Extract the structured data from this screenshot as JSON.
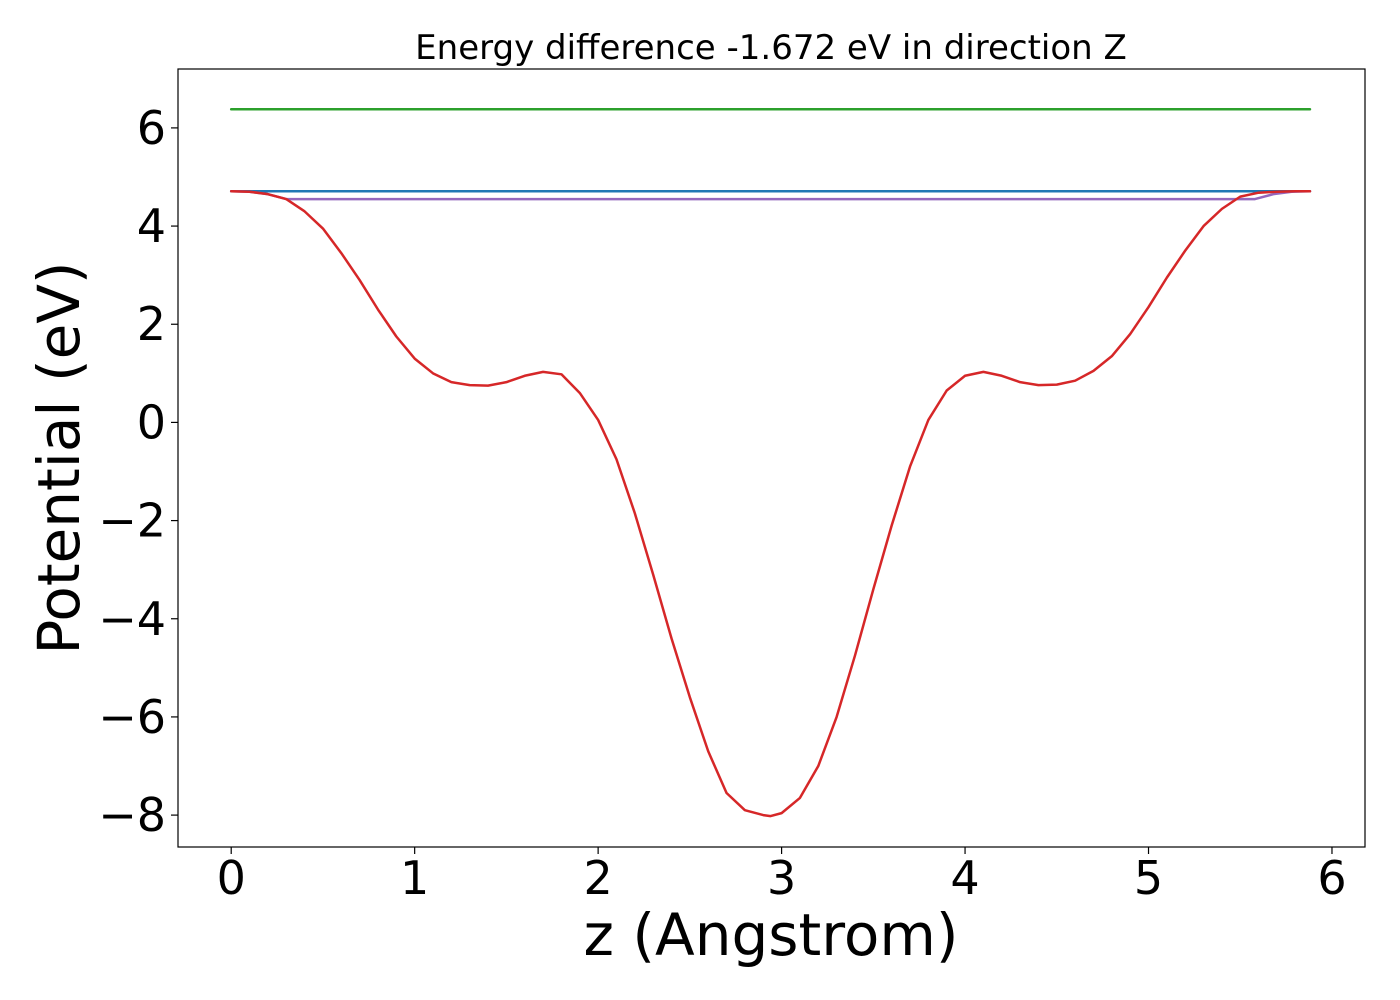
{
  "chart_data": {
    "type": "line",
    "title": "Energy difference -1.672 eV in direction Z",
    "xlabel": "z (Angstrom)",
    "ylabel": "Potential (eV)",
    "xlim": [
      -0.29,
      6.18
    ],
    "ylim": [
      -8.65,
      7.2
    ],
    "xticks": [
      0,
      1,
      2,
      3,
      4,
      5,
      6
    ],
    "yticks": [
      -8,
      -6,
      -4,
      -2,
      0,
      2,
      4,
      6
    ],
    "xtick_labels": [
      "0",
      "1",
      "2",
      "3",
      "4",
      "5",
      "6"
    ],
    "ytick_labels": [
      "−8",
      "−6",
      "−4",
      "−2",
      "0",
      "2",
      "4",
      "6"
    ],
    "grid": false,
    "legend": "none",
    "series": [
      {
        "color": "#2ca02c",
        "x": [
          0,
          5.88
        ],
        "y": [
          6.38,
          6.38
        ]
      },
      {
        "color": "#1f77b4",
        "x": [
          0,
          5.88
        ],
        "y": [
          4.71,
          4.71
        ]
      },
      {
        "color": "#9467bd",
        "x": [
          0,
          0.1,
          0.2,
          0.3,
          5.58,
          5.68,
          5.78,
          5.88
        ],
        "y": [
          4.71,
          4.7,
          4.65,
          4.55,
          4.55,
          4.65,
          4.7,
          4.71
        ]
      },
      {
        "color": "#d62728",
        "x": [
          0,
          0.1,
          0.2,
          0.3,
          0.4,
          0.5,
          0.6,
          0.7,
          0.8,
          0.9,
          1.0,
          1.1,
          1.2,
          1.3,
          1.4,
          1.5,
          1.6,
          1.7,
          1.8,
          1.9,
          2.0,
          2.1,
          2.2,
          2.3,
          2.4,
          2.5,
          2.6,
          2.7,
          2.8,
          2.9,
          2.94,
          3.0,
          3.1,
          3.2,
          3.3,
          3.4,
          3.5,
          3.6,
          3.7,
          3.8,
          3.9,
          4.0,
          4.1,
          4.2,
          4.3,
          4.4,
          4.5,
          4.6,
          4.7,
          4.8,
          4.9,
          5.0,
          5.1,
          5.2,
          5.3,
          5.4,
          5.5,
          5.6,
          5.7,
          5.8,
          5.88
        ],
        "y": [
          4.71,
          4.7,
          4.65,
          4.55,
          4.3,
          3.95,
          3.45,
          2.9,
          2.3,
          1.75,
          1.3,
          1.0,
          0.82,
          0.76,
          0.75,
          0.82,
          0.95,
          1.03,
          0.98,
          0.6,
          0.05,
          -0.75,
          -1.85,
          -3.1,
          -4.4,
          -5.6,
          -6.7,
          -7.55,
          -7.9,
          -8.0,
          -8.02,
          -7.96,
          -7.65,
          -7.0,
          -6.0,
          -4.75,
          -3.4,
          -2.1,
          -0.9,
          0.05,
          0.65,
          0.95,
          1.03,
          0.95,
          0.82,
          0.76,
          0.77,
          0.85,
          1.05,
          1.35,
          1.8,
          2.35,
          2.95,
          3.5,
          4.0,
          4.35,
          4.6,
          4.68,
          4.7,
          4.71,
          4.71
        ]
      }
    ]
  }
}
